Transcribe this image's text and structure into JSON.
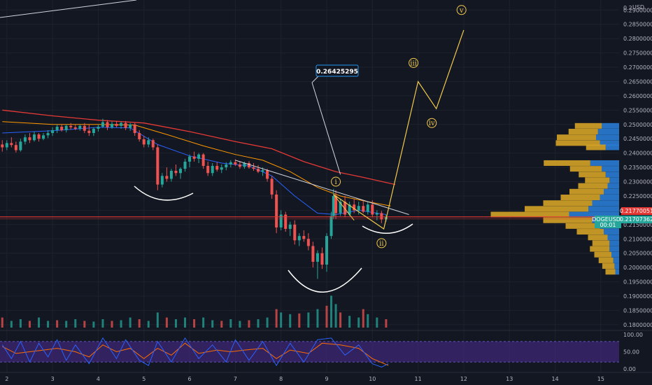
{
  "axis": {
    "currency": "USD",
    "price_ticks": [
      "0.29000000",
      "0.28500000",
      "0.28000000",
      "0.27500000",
      "0.27000000",
      "0.26500000",
      "0.26000000",
      "0.25500000",
      "0.25000000",
      "0.24500000",
      "0.24000000",
      "0.23500000",
      "0.23000000",
      "0.22500000",
      "0.22000000",
      "0.21500000",
      "0.21000000",
      "0.20500000",
      "0.20000000",
      "0.19500000",
      "0.19000000",
      "0.18500000",
      "0.18000000"
    ],
    "price_tick_values": [
      0.29,
      0.285,
      0.28,
      0.275,
      0.27,
      0.265,
      0.26,
      0.255,
      0.25,
      0.245,
      0.24,
      0.235,
      0.23,
      0.225,
      0.22,
      0.215,
      0.21,
      0.205,
      0.2,
      0.195,
      0.19,
      0.185,
      0.18
    ],
    "top_partial_label": "0.2",
    "date_ticks": [
      "2",
      "3",
      "4",
      "5",
      "6",
      "7",
      "8",
      "9",
      "10",
      "11",
      "12",
      "13",
      "14",
      "15"
    ],
    "osc_ticks": [
      "100.00",
      "50.00",
      "0.00"
    ],
    "osc_tick_values": [
      100,
      50,
      0
    ]
  },
  "tags": {
    "current_price": "0.21770051",
    "symbol": "DOGEUSDT",
    "price": "0.21707362",
    "countdown": "00:01"
  },
  "callout": {
    "value": "0.26425295"
  },
  "waves": {
    "i": "i",
    "ii": "ii",
    "iii": "iii",
    "iv": "iv",
    "v": "v"
  },
  "colors": {
    "background": "#131722",
    "up": "#26a69a",
    "down": "#ef5350",
    "ema_fast": "#2962ff",
    "ema_mid": "#ff9800",
    "ema_slow": "#e53935",
    "wave": "#f2c94c",
    "vp_up": "#2a7bd4",
    "vp_down": "#d4a226",
    "osc_k": "#2962ff",
    "osc_d": "#ff6d00",
    "osc_band": "#4a2a8a"
  },
  "chart_data": {
    "type": "candlestick",
    "symbol": "DOGEUSDT",
    "y_range": [
      0.1785,
      0.2935
    ],
    "x_range": [
      1.85,
      15.4
    ],
    "candles": [
      [
        1.9,
        0.243,
        0.2445,
        0.2405,
        0.242
      ],
      [
        2.0,
        0.242,
        0.2445,
        0.241,
        0.2435
      ],
      [
        2.1,
        0.2435,
        0.2455,
        0.242,
        0.2428
      ],
      [
        2.2,
        0.2428,
        0.244,
        0.2402,
        0.241
      ],
      [
        2.3,
        0.241,
        0.245,
        0.2405,
        0.244
      ],
      [
        2.4,
        0.244,
        0.2465,
        0.243,
        0.2455
      ],
      [
        2.5,
        0.2455,
        0.247,
        0.2435,
        0.2445
      ],
      [
        2.6,
        0.2445,
        0.2475,
        0.244,
        0.2465
      ],
      [
        2.7,
        0.2465,
        0.247,
        0.244,
        0.245
      ],
      [
        2.8,
        0.245,
        0.247,
        0.2445,
        0.2462
      ],
      [
        2.9,
        0.2462,
        0.248,
        0.2452,
        0.247
      ],
      [
        3.0,
        0.247,
        0.249,
        0.246,
        0.248
      ],
      [
        3.1,
        0.248,
        0.25,
        0.247,
        0.2492
      ],
      [
        3.2,
        0.2492,
        0.2502,
        0.2475,
        0.248
      ],
      [
        3.3,
        0.248,
        0.25,
        0.2472,
        0.2495
      ],
      [
        3.4,
        0.2495,
        0.2505,
        0.2482,
        0.249
      ],
      [
        3.5,
        0.249,
        0.25,
        0.248,
        0.2485
      ],
      [
        3.6,
        0.2485,
        0.25,
        0.2478,
        0.2495
      ],
      [
        3.7,
        0.2495,
        0.2505,
        0.247,
        0.2478
      ],
      [
        3.8,
        0.2478,
        0.25,
        0.246,
        0.247
      ],
      [
        3.9,
        0.247,
        0.249,
        0.246,
        0.2485
      ],
      [
        4.0,
        0.2485,
        0.25,
        0.2475,
        0.2492
      ],
      [
        4.1,
        0.2492,
        0.252,
        0.2488,
        0.2508
      ],
      [
        4.2,
        0.2508,
        0.2515,
        0.248,
        0.249
      ],
      [
        4.3,
        0.249,
        0.251,
        0.2485,
        0.2502
      ],
      [
        4.4,
        0.2502,
        0.2512,
        0.249,
        0.2495
      ],
      [
        4.5,
        0.2495,
        0.251,
        0.2485,
        0.2505
      ],
      [
        4.6,
        0.2505,
        0.2512,
        0.248,
        0.2488
      ],
      [
        4.7,
        0.2488,
        0.2505,
        0.2478,
        0.25
      ],
      [
        4.8,
        0.25,
        0.2505,
        0.246,
        0.247
      ],
      [
        4.9,
        0.247,
        0.248,
        0.244,
        0.2448
      ],
      [
        5.0,
        0.2448,
        0.246,
        0.242,
        0.243
      ],
      [
        5.1,
        0.243,
        0.2455,
        0.242,
        0.2445
      ],
      [
        5.2,
        0.2445,
        0.245,
        0.241,
        0.242
      ],
      [
        5.3,
        0.242,
        0.243,
        0.227,
        0.229
      ],
      [
        5.4,
        0.229,
        0.233,
        0.228,
        0.232
      ],
      [
        5.5,
        0.232,
        0.235,
        0.23,
        0.231
      ],
      [
        5.6,
        0.231,
        0.2345,
        0.23,
        0.2338
      ],
      [
        5.7,
        0.2338,
        0.236,
        0.232,
        0.233
      ],
      [
        5.8,
        0.233,
        0.235,
        0.231,
        0.2345
      ],
      [
        5.9,
        0.2345,
        0.238,
        0.2335,
        0.237
      ],
      [
        6.0,
        0.237,
        0.2395,
        0.235,
        0.2388
      ],
      [
        6.1,
        0.2388,
        0.2405,
        0.237,
        0.238
      ],
      [
        6.2,
        0.238,
        0.24,
        0.2365,
        0.2395
      ],
      [
        6.3,
        0.2395,
        0.24,
        0.2345,
        0.2355
      ],
      [
        6.4,
        0.2355,
        0.237,
        0.232,
        0.233
      ],
      [
        6.5,
        0.233,
        0.2365,
        0.232,
        0.2355
      ],
      [
        6.6,
        0.2355,
        0.2368,
        0.2335,
        0.2342
      ],
      [
        6.7,
        0.2342,
        0.236,
        0.233,
        0.235
      ],
      [
        6.8,
        0.235,
        0.2368,
        0.234,
        0.236
      ],
      [
        6.9,
        0.236,
        0.2375,
        0.235,
        0.2368
      ],
      [
        7.0,
        0.2368,
        0.2378,
        0.2355,
        0.236
      ],
      [
        7.1,
        0.236,
        0.2372,
        0.2345,
        0.2352
      ],
      [
        7.2,
        0.2352,
        0.237,
        0.2345,
        0.2365
      ],
      [
        7.3,
        0.2365,
        0.2372,
        0.2345,
        0.235
      ],
      [
        7.4,
        0.235,
        0.2365,
        0.2338,
        0.2345
      ],
      [
        7.5,
        0.2345,
        0.2358,
        0.233,
        0.2335
      ],
      [
        7.6,
        0.2335,
        0.235,
        0.232,
        0.234
      ],
      [
        7.7,
        0.234,
        0.2345,
        0.23,
        0.231
      ],
      [
        7.8,
        0.231,
        0.232,
        0.224,
        0.2255
      ],
      [
        7.9,
        0.2255,
        0.227,
        0.212,
        0.214
      ],
      [
        8.0,
        0.214,
        0.22,
        0.213,
        0.2185
      ],
      [
        8.1,
        0.2185,
        0.2195,
        0.2125,
        0.2135
      ],
      [
        8.2,
        0.2135,
        0.216,
        0.211,
        0.215
      ],
      [
        8.3,
        0.215,
        0.2165,
        0.208,
        0.2095
      ],
      [
        8.4,
        0.2095,
        0.212,
        0.2075,
        0.211
      ],
      [
        8.5,
        0.211,
        0.213,
        0.209,
        0.21
      ],
      [
        8.6,
        0.21,
        0.212,
        0.206,
        0.2075
      ],
      [
        8.7,
        0.2075,
        0.209,
        0.2,
        0.202
      ],
      [
        8.8,
        0.202,
        0.206,
        0.196,
        0.205
      ],
      [
        8.9,
        0.205,
        0.207,
        0.1995,
        0.201
      ],
      [
        9.0,
        0.201,
        0.212,
        0.1985,
        0.211
      ],
      [
        9.1,
        0.211,
        0.2195,
        0.21,
        0.218
      ],
      [
        9.15,
        0.218,
        0.2275,
        0.217,
        0.225
      ],
      [
        9.2,
        0.225,
        0.227,
        0.217,
        0.219
      ],
      [
        9.3,
        0.219,
        0.224,
        0.218,
        0.223
      ],
      [
        9.4,
        0.223,
        0.225,
        0.2175,
        0.2185
      ],
      [
        9.5,
        0.2185,
        0.223,
        0.218,
        0.222
      ],
      [
        9.6,
        0.222,
        0.224,
        0.219,
        0.22
      ],
      [
        9.7,
        0.22,
        0.223,
        0.2185,
        0.2215
      ],
      [
        9.8,
        0.2215,
        0.2235,
        0.219,
        0.2195
      ],
      [
        9.9,
        0.2195,
        0.223,
        0.2185,
        0.222
      ],
      [
        10.0,
        0.222,
        0.2235,
        0.2175,
        0.2185
      ],
      [
        10.1,
        0.2185,
        0.22,
        0.2165,
        0.219
      ],
      [
        10.2,
        0.219,
        0.2198,
        0.2155,
        0.2168
      ],
      [
        10.3,
        0.2168,
        0.2185,
        0.216,
        0.2177
      ]
    ],
    "ema_fast": [
      [
        1.9,
        0.247
      ],
      [
        3.0,
        0.2478
      ],
      [
        4.0,
        0.249
      ],
      [
        4.7,
        0.2488
      ],
      [
        5.3,
        0.243
      ],
      [
        6.0,
        0.239
      ],
      [
        6.7,
        0.2365
      ],
      [
        7.3,
        0.2355
      ],
      [
        7.8,
        0.232
      ],
      [
        8.3,
        0.225
      ],
      [
        8.8,
        0.219
      ],
      [
        9.2,
        0.2185
      ],
      [
        9.7,
        0.22
      ],
      [
        10.3,
        0.2185
      ]
    ],
    "ema_mid": [
      [
        1.9,
        0.251
      ],
      [
        3.0,
        0.25
      ],
      [
        4.0,
        0.25
      ],
      [
        4.8,
        0.2498
      ],
      [
        5.5,
        0.2465
      ],
      [
        6.3,
        0.2425
      ],
      [
        7.0,
        0.2395
      ],
      [
        7.6,
        0.2375
      ],
      [
        8.2,
        0.2335
      ],
      [
        8.8,
        0.228
      ],
      [
        9.3,
        0.225
      ],
      [
        9.9,
        0.223
      ],
      [
        10.4,
        0.2215
      ]
    ],
    "ema_slow": [
      [
        1.9,
        0.255
      ],
      [
        3.0,
        0.253
      ],
      [
        4.0,
        0.2515
      ],
      [
        5.0,
        0.2505
      ],
      [
        6.0,
        0.2475
      ],
      [
        7.0,
        0.244
      ],
      [
        7.8,
        0.2415
      ],
      [
        8.5,
        0.237
      ],
      [
        9.2,
        0.2335
      ],
      [
        9.8,
        0.2315
      ],
      [
        10.5,
        0.229
      ]
    ],
    "volume": [
      [
        1.9,
        0.3
      ],
      [
        2.1,
        0.2
      ],
      [
        2.3,
        0.25
      ],
      [
        2.5,
        0.2
      ],
      [
        2.7,
        0.3
      ],
      [
        2.9,
        0.2
      ],
      [
        3.1,
        0.22
      ],
      [
        3.3,
        0.2
      ],
      [
        3.5,
        0.25
      ],
      [
        3.7,
        0.2
      ],
      [
        3.9,
        0.18
      ],
      [
        4.1,
        0.25
      ],
      [
        4.3,
        0.2
      ],
      [
        4.5,
        0.22
      ],
      [
        4.7,
        0.3
      ],
      [
        4.9,
        0.25
      ],
      [
        5.1,
        0.2
      ],
      [
        5.3,
        0.45
      ],
      [
        5.5,
        0.3
      ],
      [
        5.7,
        0.25
      ],
      [
        5.9,
        0.3
      ],
      [
        6.1,
        0.25
      ],
      [
        6.3,
        0.3
      ],
      [
        6.5,
        0.22
      ],
      [
        6.7,
        0.2
      ],
      [
        6.9,
        0.25
      ],
      [
        7.1,
        0.2
      ],
      [
        7.3,
        0.22
      ],
      [
        7.5,
        0.25
      ],
      [
        7.7,
        0.3
      ],
      [
        7.9,
        0.55
      ],
      [
        8.0,
        0.45
      ],
      [
        8.2,
        0.4
      ],
      [
        8.4,
        0.42
      ],
      [
        8.6,
        0.45
      ],
      [
        8.8,
        0.55
      ],
      [
        9.0,
        0.65
      ],
      [
        9.1,
        0.95
      ],
      [
        9.2,
        0.7
      ],
      [
        9.3,
        0.45
      ],
      [
        9.5,
        0.35
      ],
      [
        9.7,
        0.3
      ],
      [
        9.8,
        0.55
      ],
      [
        9.9,
        0.4
      ],
      [
        10.1,
        0.3
      ],
      [
        10.3,
        0.25
      ]
    ],
    "oscillator_k": [
      [
        1.9,
        70
      ],
      [
        2.1,
        30
      ],
      [
        2.3,
        80
      ],
      [
        2.5,
        20
      ],
      [
        2.7,
        75
      ],
      [
        2.9,
        35
      ],
      [
        3.1,
        85
      ],
      [
        3.3,
        25
      ],
      [
        3.5,
        70
      ],
      [
        3.8,
        15
      ],
      [
        4.1,
        90
      ],
      [
        4.4,
        30
      ],
      [
        4.6,
        85
      ],
      [
        4.9,
        25
      ],
      [
        5.1,
        10
      ],
      [
        5.3,
        80
      ],
      [
        5.6,
        20
      ],
      [
        5.9,
        90
      ],
      [
        6.2,
        30
      ],
      [
        6.5,
        70
      ],
      [
        6.8,
        20
      ],
      [
        7.0,
        85
      ],
      [
        7.3,
        25
      ],
      [
        7.6,
        80
      ],
      [
        7.9,
        10
      ],
      [
        8.2,
        75
      ],
      [
        8.5,
        20
      ],
      [
        8.8,
        85
      ],
      [
        9.1,
        90
      ],
      [
        9.4,
        40
      ],
      [
        9.7,
        70
      ],
      [
        10.0,
        15
      ],
      [
        10.2,
        5
      ],
      [
        10.35,
        15
      ]
    ],
    "oscillator_d": [
      [
        1.9,
        65
      ],
      [
        2.2,
        45
      ],
      [
        2.5,
        50
      ],
      [
        2.8,
        55
      ],
      [
        3.1,
        60
      ],
      [
        3.5,
        50
      ],
      [
        3.8,
        35
      ],
      [
        4.1,
        70
      ],
      [
        4.4,
        50
      ],
      [
        4.7,
        60
      ],
      [
        5.0,
        30
      ],
      [
        5.3,
        60
      ],
      [
        5.6,
        40
      ],
      [
        5.9,
        75
      ],
      [
        6.2,
        45
      ],
      [
        6.6,
        55
      ],
      [
        6.9,
        50
      ],
      [
        7.2,
        55
      ],
      [
        7.6,
        60
      ],
      [
        7.9,
        30
      ],
      [
        8.2,
        55
      ],
      [
        8.6,
        45
      ],
      [
        8.9,
        75
      ],
      [
        9.3,
        70
      ],
      [
        9.7,
        60
      ],
      [
        10.0,
        30
      ],
      [
        10.35,
        10
      ]
    ],
    "volume_profile": [
      [
        0.2495,
        0.45,
        0.55
      ],
      [
        0.2475,
        0.55,
        0.6
      ],
      [
        0.2455,
        0.6,
        0.8
      ],
      [
        0.2435,
        0.5,
        0.9
      ],
      [
        0.242,
        0.35,
        0.4
      ],
      [
        0.2365,
        0.75,
        0.95
      ],
      [
        0.2345,
        0.45,
        0.65
      ],
      [
        0.2325,
        0.35,
        0.55
      ],
      [
        0.2305,
        0.25,
        0.5
      ],
      [
        0.2285,
        0.3,
        0.6
      ],
      [
        0.2265,
        0.4,
        0.7
      ],
      [
        0.2245,
        0.5,
        0.8
      ],
      [
        0.2225,
        0.7,
        1.0
      ],
      [
        0.2205,
        0.8,
        1.3
      ],
      [
        0.2185,
        1.3,
        1.6
      ],
      [
        0.2165,
        0.7,
        1.0
      ],
      [
        0.2145,
        0.5,
        0.7
      ],
      [
        0.2125,
        0.4,
        0.55
      ],
      [
        0.2105,
        0.3,
        0.4
      ],
      [
        0.2085,
        0.25,
        0.35
      ],
      [
        0.2065,
        0.25,
        0.4
      ],
      [
        0.2045,
        0.2,
        0.35
      ],
      [
        0.2025,
        0.15,
        0.3
      ],
      [
        0.2005,
        0.12,
        0.25
      ],
      [
        0.1985,
        0.1,
        0.2
      ]
    ],
    "projection": [
      [
        9.15,
        0.2255
      ],
      [
        10.25,
        0.2135
      ],
      [
        11.0,
        0.265
      ],
      [
        11.4,
        0.2555
      ],
      [
        12.0,
        0.283
      ]
    ],
    "resistance_line": [
      [
        7.0,
        0.2375
      ],
      [
        10.8,
        0.2185
      ]
    ],
    "horizontal_level": 0.2177,
    "callout_anchor": [
      9.3,
      0.2325
    ]
  }
}
